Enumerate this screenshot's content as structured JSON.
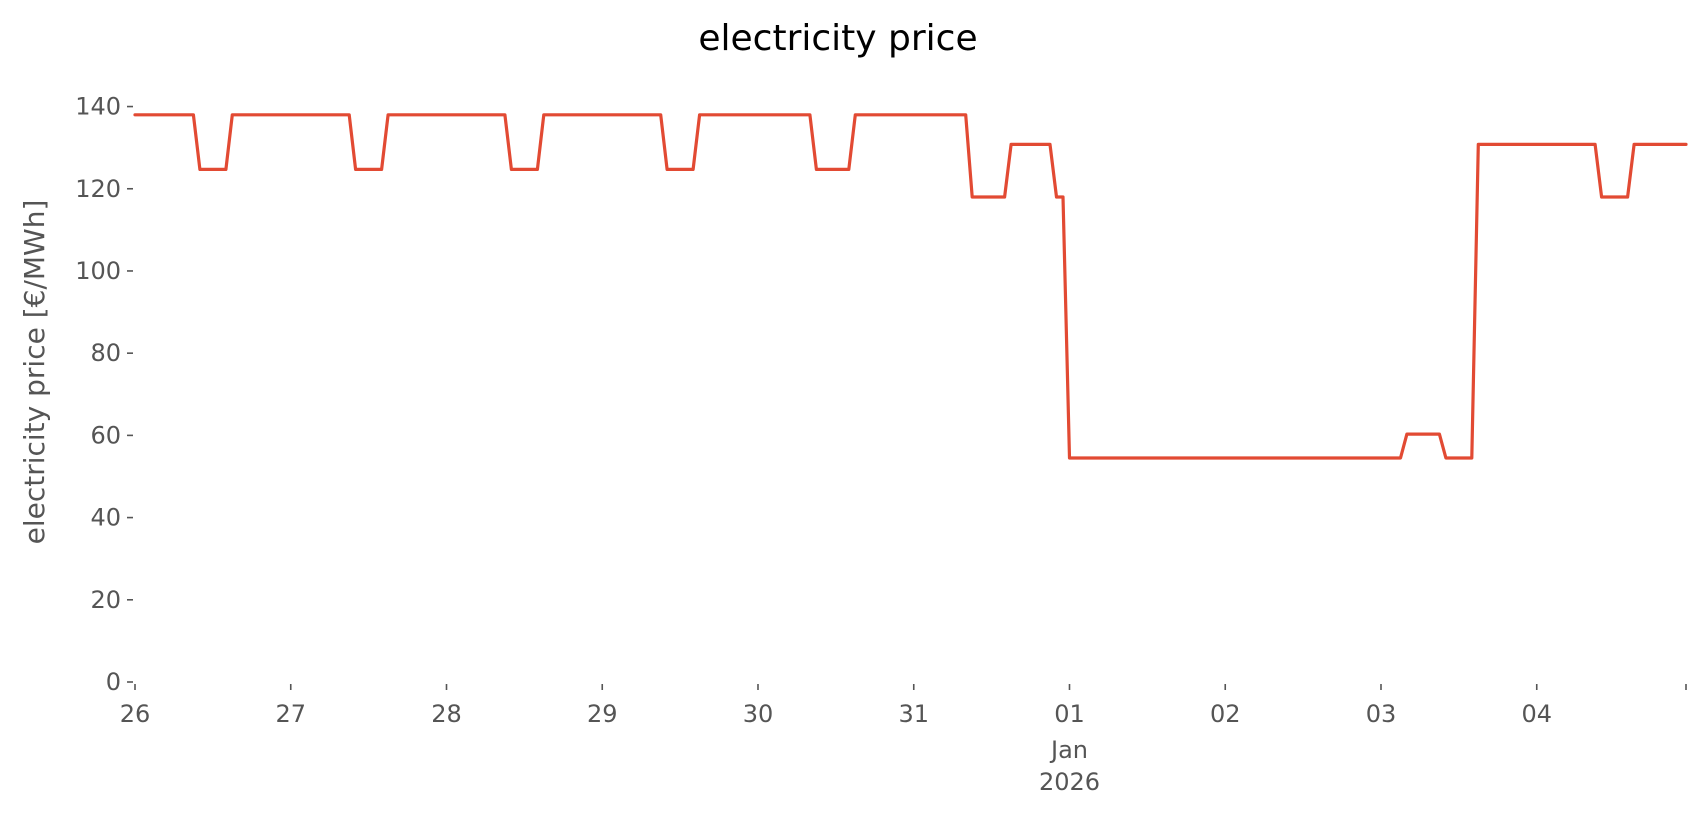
{
  "chart_data": {
    "type": "line",
    "title": "electricity price",
    "xlabel": "",
    "ylabel": "electricity price [€/MWh]",
    "ylim": [
      0,
      145
    ],
    "xlim": [
      "2025-12-26 00:00",
      "2026-01-04 23:00"
    ],
    "grid": false,
    "legend": "none",
    "x_ticks": [
      {
        "date": "2025-12-26",
        "label": "26"
      },
      {
        "date": "2025-12-27",
        "label": "27"
      },
      {
        "date": "2025-12-28",
        "label": "28"
      },
      {
        "date": "2025-12-29",
        "label": "29"
      },
      {
        "date": "2025-12-30",
        "label": "30"
      },
      {
        "date": "2025-12-31",
        "label": "31"
      },
      {
        "date": "2026-01-01",
        "label": "01",
        "sublabels": [
          "Jan",
          "2026"
        ]
      },
      {
        "date": "2026-01-02",
        "label": "02"
      },
      {
        "date": "2026-01-03",
        "label": "03"
      },
      {
        "date": "2026-01-04",
        "label": "04"
      },
      {
        "date": "2026-01-04 23:00",
        "label": ""
      }
    ],
    "y_ticks": [
      0,
      20,
      40,
      60,
      80,
      100,
      120,
      140
    ],
    "series": [
      {
        "color": "#E24A33",
        "points": [
          [
            "2025-12-26 00:00",
            138
          ],
          [
            "2025-12-26 09:00",
            138
          ],
          [
            "2025-12-26 10:00",
            124.7
          ],
          [
            "2025-12-26 14:00",
            124.7
          ],
          [
            "2025-12-26 15:00",
            138
          ],
          [
            "2025-12-27 09:00",
            138
          ],
          [
            "2025-12-27 10:00",
            124.7
          ],
          [
            "2025-12-27 14:00",
            124.7
          ],
          [
            "2025-12-27 15:00",
            138
          ],
          [
            "2025-12-28 09:00",
            138
          ],
          [
            "2025-12-28 10:00",
            124.7
          ],
          [
            "2025-12-28 14:00",
            124.7
          ],
          [
            "2025-12-28 15:00",
            138
          ],
          [
            "2025-12-29 09:00",
            138
          ],
          [
            "2025-12-29 10:00",
            124.7
          ],
          [
            "2025-12-29 14:00",
            124.7
          ],
          [
            "2025-12-29 15:00",
            138
          ],
          [
            "2025-12-30 08:00",
            138
          ],
          [
            "2025-12-30 09:00",
            124.7
          ],
          [
            "2025-12-30 14:00",
            124.7
          ],
          [
            "2025-12-30 15:00",
            138
          ],
          [
            "2025-12-31 08:00",
            138
          ],
          [
            "2025-12-31 09:00",
            118
          ],
          [
            "2025-12-31 14:00",
            118
          ],
          [
            "2025-12-31 15:00",
            130.8
          ],
          [
            "2025-12-31 21:00",
            130.8
          ],
          [
            "2025-12-31 22:00",
            118
          ],
          [
            "2025-12-31 23:00",
            118
          ],
          [
            "2026-01-01 00:00",
            54.5
          ],
          [
            "2026-01-03 03:00",
            54.5
          ],
          [
            "2026-01-03 04:00",
            60.3
          ],
          [
            "2026-01-03 09:00",
            60.3
          ],
          [
            "2026-01-03 10:00",
            54.5
          ],
          [
            "2026-01-03 14:00",
            54.5
          ],
          [
            "2026-01-03 15:00",
            130.8
          ],
          [
            "2026-01-04 09:00",
            130.8
          ],
          [
            "2026-01-04 10:00",
            118
          ],
          [
            "2026-01-04 14:00",
            118
          ],
          [
            "2026-01-04 15:00",
            130.8
          ],
          [
            "2026-01-04 23:00",
            130.8
          ]
        ]
      }
    ]
  }
}
